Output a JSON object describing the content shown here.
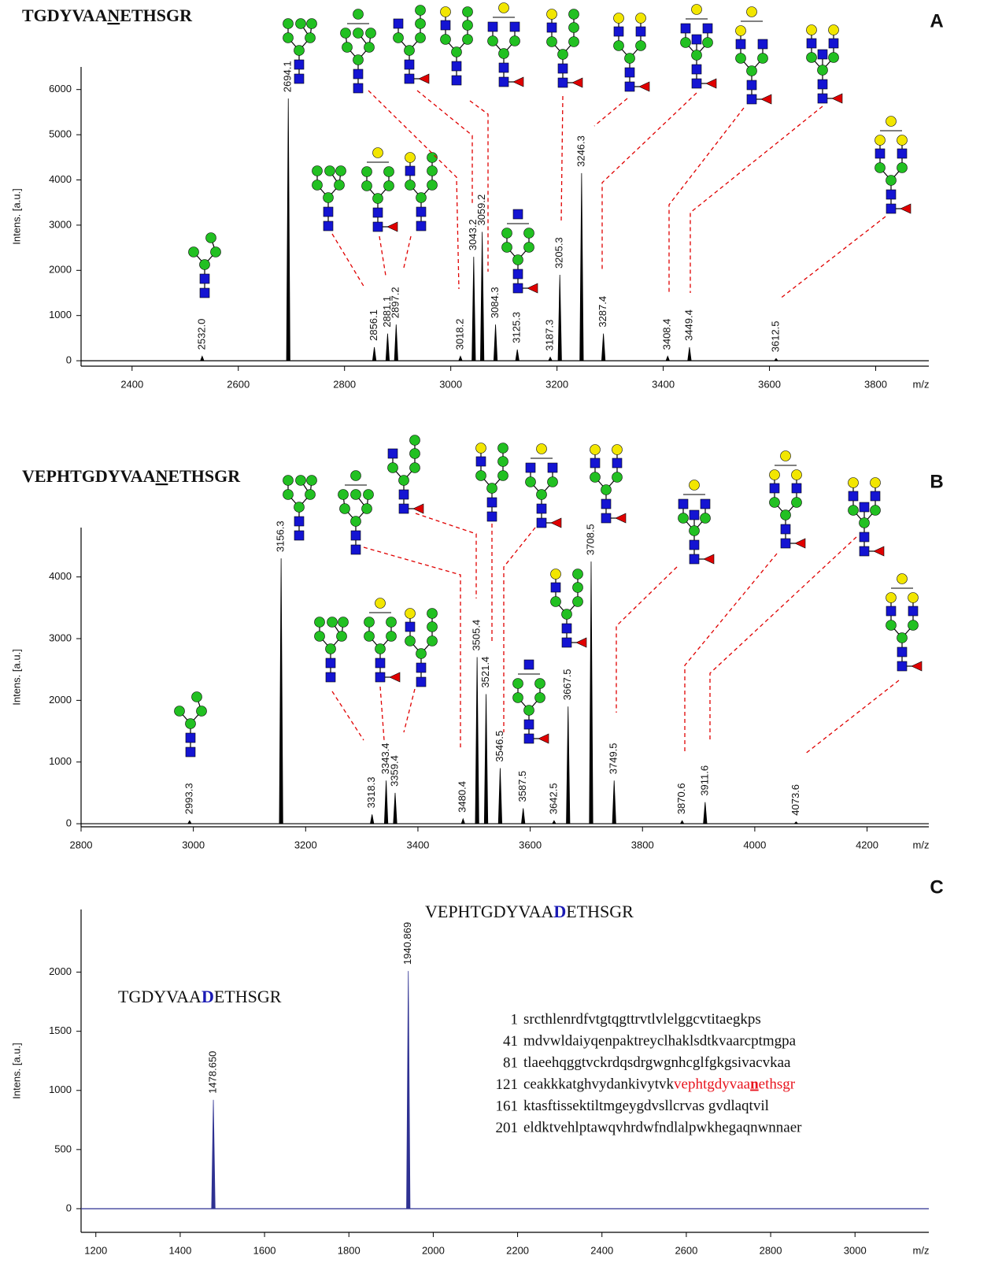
{
  "chart_data": [
    {
      "type": "spectrum",
      "label": "A",
      "title": [
        {
          "text": "TGDYVAA"
        },
        {
          "text": "N",
          "underline": true,
          "color": "#111111"
        },
        {
          "text": "ETHSGR"
        }
      ],
      "title_color": "#e8141e",
      "ylabel": "Intens. [a.u.]",
      "xlabel": "m/z",
      "color": "#000000",
      "xlim": [
        2304,
        3900
      ],
      "ylim": [
        -120,
        6500
      ],
      "xticks": [
        2400,
        2600,
        2800,
        3000,
        3200,
        3400,
        3600,
        3800
      ],
      "yticks": [
        0,
        1000,
        2000,
        3000,
        4000,
        5000,
        6000
      ],
      "x": [
        2532.0,
        2694.1,
        2856.1,
        2881.1,
        2897.2,
        3018.2,
        3043.2,
        3059.2,
        3084.3,
        3125.3,
        3187.3,
        3205.3,
        3246.3,
        3287.4,
        3408.4,
        3449.4,
        3612.5
      ],
      "x_labels": [
        "2532.0",
        "2694.1",
        "2856.1",
        "2881.1",
        "2897.2",
        "3018.2",
        "3043.2",
        "3059.2",
        "3084.3",
        "3125.3",
        "3187.3",
        "3205.3",
        "3246.3",
        "3287.4",
        "3408.4",
        "3449.4",
        "3612.5"
      ],
      "values": [
        100,
        5800,
        300,
        600,
        800,
        100,
        2300,
        2850,
        800,
        250,
        80,
        1900,
        4150,
        600,
        100,
        300,
        50
      ]
    },
    {
      "type": "spectrum",
      "label": "B",
      "title": [
        {
          "text": "VEPHTGDYVAA"
        },
        {
          "text": "N",
          "underline": true,
          "color": "#111111"
        },
        {
          "text": "ETHSGR"
        }
      ],
      "title_color": "#e8141e",
      "ylabel": "Intens. [a.u.]",
      "xlabel": "m/z",
      "color": "#000000",
      "xlim": [
        2800,
        4310
      ],
      "ylim": [
        -50,
        4800
      ],
      "xticks": [
        2800,
        3000,
        3200,
        3400,
        3600,
        3800,
        4000,
        4200
      ],
      "yticks": [
        0,
        1000,
        2000,
        3000,
        4000
      ],
      "x": [
        2993.3,
        3156.3,
        3318.3,
        3343.4,
        3359.4,
        3480.4,
        3505.4,
        3521.4,
        3546.5,
        3587.5,
        3642.5,
        3667.5,
        3708.5,
        3749.5,
        3870.6,
        3911.6,
        4073.6
      ],
      "x_labels": [
        "2993.3",
        "3156.3",
        "3318.3",
        "3343.4",
        "3359.4",
        "3480.4",
        "3505.4",
        "3521.4",
        "3546.5",
        "3587.5",
        "3642.5",
        "3667.5",
        "3708.5",
        "3749.5",
        "3870.6",
        "3911.6",
        "4073.6"
      ],
      "values": [
        50,
        4300,
        150,
        700,
        500,
        80,
        2700,
        2100,
        900,
        250,
        50,
        1900,
        4250,
        700,
        50,
        350,
        30
      ]
    },
    {
      "type": "spectrum",
      "label": "C",
      "ylabel": "Intens. [a.u.]",
      "xlabel": "m/z",
      "color": "#2e3192",
      "xlim": [
        1165,
        3175
      ],
      "ylim": [
        -200,
        2530
      ],
      "xticks": [
        1200,
        1400,
        1600,
        1800,
        2000,
        2200,
        2400,
        2600,
        2800,
        3000
      ],
      "yticks": [
        0,
        500,
        1000,
        1500,
        2000
      ],
      "x": [
        1478.65,
        1940.869
      ],
      "x_labels": [
        "1478.650",
        "1940.869"
      ],
      "values": [
        920,
        2010
      ],
      "annotations": [
        {
          "parts": [
            {
              "text": "VEPHTGDYVAA"
            },
            {
              "text": "D",
              "color": "#1a1ab4",
              "bold": true
            },
            {
              "text": "ETHSGR"
            }
          ]
        },
        {
          "parts": [
            {
              "text": "TGDYVAA"
            },
            {
              "text": "D",
              "color": "#1a1ab4",
              "bold": true
            },
            {
              "text": "ETHSGR"
            }
          ]
        }
      ],
      "annotation_color": "#e8141e",
      "sequence": [
        {
          "number": "1",
          "parts": [
            {
              "text": "srcthlenrdfvtgtqgttrvtlvlelggcvtitaegkps"
            }
          ]
        },
        {
          "number": "41",
          "parts": [
            {
              "text": "mdvwldaiyqenpaktreyclhaklsdtkvaarcptmgpa"
            }
          ]
        },
        {
          "number": "81",
          "parts": [
            {
              "text": "tlaeehqggtvckrdqsdrgwgnhcglfgkgsivacvkaa"
            }
          ]
        },
        {
          "number": "121",
          "parts": [
            {
              "text": "ceakkkatghvydankivytvk"
            },
            {
              "text": "vephtgdyvaa",
              "color": "#e8141e"
            },
            {
              "text": "n",
              "color": "#e8141e",
              "bold": true,
              "underline": true
            },
            {
              "text": "ethsgr",
              "color": "#e8141e"
            }
          ]
        },
        {
          "number": "161",
          "parts": [
            {
              "text": "ktasftissektiltmgeygdvsllcrvas gvdlaqtvil"
            }
          ]
        },
        {
          "number": "201",
          "parts": [
            {
              "text": "eldktvehlptawqvhrdwfndlalpwkhegaqnwnnaer"
            }
          ]
        }
      ]
    }
  ]
}
